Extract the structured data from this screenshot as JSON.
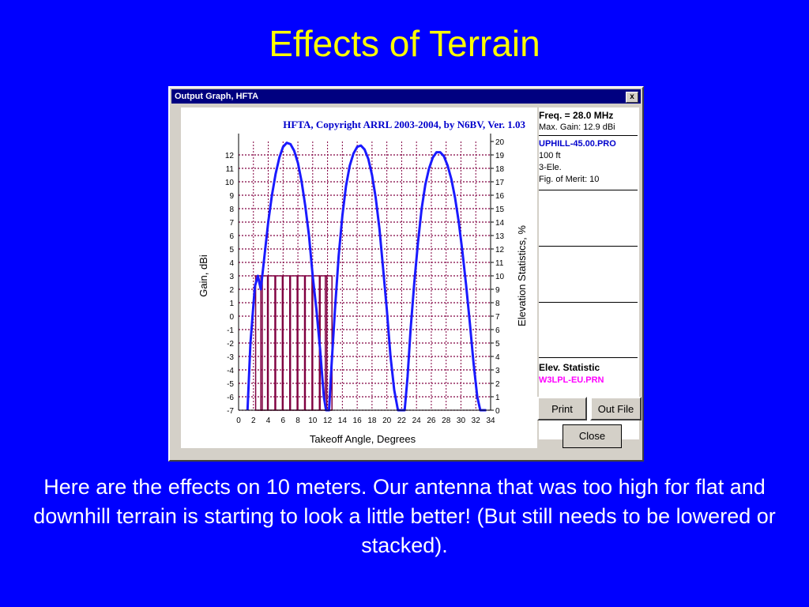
{
  "slide": {
    "title": "Effects of Terrain",
    "caption": "Here are the effects on 10 meters.  Our antenna that was too high for flat and downhill terrain is starting to look a little better! (But still needs to be lowered or stacked)."
  },
  "window": {
    "title": "Output Graph, HFTA",
    "close_glyph": "x"
  },
  "panel": {
    "freq": "Freq. = 28.0 MHz",
    "max_gain": "Max. Gain: 12.9 dBi",
    "profile": "UPHILL-45.00.PRO",
    "height": "100 ft",
    "antenna": "3-Ele.",
    "merit": "Fig. of Merit:  10",
    "elev_statistic": "Elev. Statistic",
    "elev_file": "W3LPL-EU.PRN"
  },
  "buttons": {
    "print": "Print",
    "out_file": "Out File",
    "close": "Close"
  },
  "colors": {
    "slide_bg": "#0000ff",
    "title": "#ffff00",
    "curve": "#1a1aff",
    "stat_bars": "#800040",
    "grid": "#800040"
  },
  "chart_data": {
    "type": "line",
    "title": "HFTA, Copyright ARRL 2003-2004, by N6BV, Ver. 1.03",
    "xlabel": "Takeoff Angle, Degrees",
    "ylabel": "Gain, dBi",
    "y2label": "Elevation Statistics, %",
    "xlim": [
      0,
      34
    ],
    "ylim": [
      -7,
      13
    ],
    "y2lim": [
      0,
      20
    ],
    "grid": true,
    "xticks": [
      0,
      2,
      4,
      6,
      8,
      10,
      12,
      14,
      16,
      18,
      20,
      22,
      24,
      26,
      28,
      30,
      32,
      34
    ],
    "yticks": [
      -7,
      -6,
      -5,
      -4,
      -3,
      -2,
      -1,
      0,
      1,
      2,
      3,
      4,
      5,
      6,
      7,
      8,
      9,
      10,
      11,
      12
    ],
    "y2ticks": [
      0,
      1,
      2,
      3,
      4,
      5,
      6,
      7,
      8,
      9,
      10,
      11,
      12,
      13,
      14,
      15,
      16,
      17,
      18,
      19,
      20
    ],
    "series": [
      {
        "values_x": [
          1.2,
          1.6,
          2.2,
          2.6,
          3.0,
          3.5,
          4.0,
          4.5,
          5.0,
          5.5,
          6.0,
          6.5,
          7.0,
          7.5,
          8.0,
          8.5,
          9.0,
          9.5,
          10.0,
          10.5,
          11.0,
          11.5,
          11.8,
          12.2,
          12.5,
          13.0,
          13.5,
          14.0,
          14.5,
          15.0,
          15.5,
          16.0,
          16.5,
          17.0,
          17.5,
          18.0,
          18.5,
          19.0,
          19.5,
          20.0,
          20.5,
          21.0,
          21.5,
          21.8,
          22.4,
          22.8,
          23.2,
          23.7,
          24.2,
          24.7,
          25.2,
          25.7,
          26.2,
          26.7,
          27.2,
          27.7,
          28.2,
          28.7,
          29.2,
          29.7,
          30.2,
          30.7,
          31.2,
          31.7,
          32.2,
          32.6,
          33.0,
          33.4
        ],
        "values_y": [
          -7,
          -2,
          2.2,
          3.0,
          2.0,
          4.5,
          7.0,
          9.0,
          10.6,
          11.8,
          12.6,
          12.9,
          12.8,
          12.3,
          11.4,
          10.0,
          8.2,
          6.0,
          3.0,
          0.5,
          -2.5,
          -6.0,
          -7,
          -7,
          -4.0,
          0.5,
          4.5,
          7.5,
          9.7,
          11.2,
          12.1,
          12.6,
          12.7,
          12.4,
          11.7,
          10.5,
          8.8,
          6.5,
          3.5,
          0.5,
          -3.0,
          -5.5,
          -7,
          -7,
          -7,
          -4.5,
          -1.0,
          2.5,
          5.5,
          8.0,
          9.8,
          11.0,
          11.8,
          12.2,
          12.2,
          11.9,
          11.2,
          10.2,
          8.8,
          7.0,
          4.8,
          2.3,
          -0.5,
          -3.5,
          -6.0,
          -7,
          -7,
          -7
        ]
      }
    ],
    "elevation_statistics": {
      "x": [
        2.3,
        3.0,
        4.0,
        5.0,
        6.0,
        7.0,
        8.0,
        9.0,
        10.0,
        11.0,
        11.7
      ],
      "values": [
        10,
        10,
        10,
        10,
        10,
        10,
        10,
        10,
        10,
        10,
        10
      ]
    }
  }
}
